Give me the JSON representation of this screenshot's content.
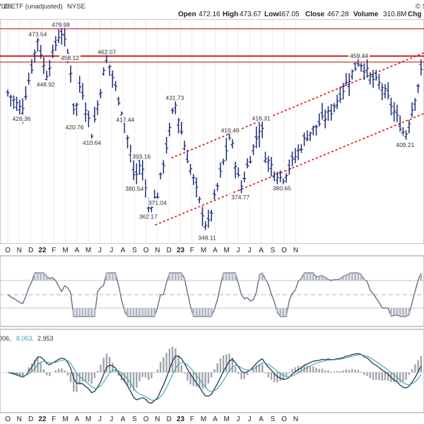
{
  "header": {
    "title_fragment": "00 ETF (unadjusted)",
    "exchange": "NYSE",
    "open_label": "Open",
    "open_value": "472.16",
    "high_label": "High",
    "high_value": "473.67",
    "low_label": "Low",
    "low_value": "467.05",
    "close_label": "Close",
    "close_value": "467.28",
    "volume_label": "Volume",
    "volume_value": "310.8M",
    "chg_label": "Chg",
    "top_left_fragment": "7.28",
    "top_right_fragment": "© S"
  },
  "macd_labels": {
    "first": "006,",
    "signal": "8.053,",
    "hist": "2.953"
  },
  "colors": {
    "bars": "#1b2a78",
    "resistance": "#cc0000",
    "channel": "#dd1111",
    "price_label_bg": "#ffffff",
    "osc_line": "#5a6680",
    "osc_fill": "#b4b9c5",
    "macd_line": "#2a3555",
    "signal_line": "#3aa6a6",
    "hist": "#a0a4ad",
    "grid": "#d4d4d4"
  },
  "chart_data": {
    "type": "ohlc",
    "ylim": [
      340,
      485
    ],
    "xaxis_labels": [
      "O",
      "N",
      "D",
      "22",
      "F",
      "M",
      "A",
      "M",
      "J",
      "J",
      "A",
      "S",
      "O",
      "N",
      "D",
      "23",
      "F",
      "M",
      "A",
      "M",
      "J",
      "J",
      "A",
      "S",
      "O",
      "N"
    ],
    "year_labels": [
      "22",
      "23"
    ],
    "price_keypoints": [
      {
        "t": 0.0,
        "close": 438
      },
      {
        "t": 1.2,
        "close": 426.36
      },
      {
        "t": 2.0,
        "close": 452
      },
      {
        "t": 2.6,
        "close": 473.54
      },
      {
        "t": 3.3,
        "close": 448.92
      },
      {
        "t": 4.6,
        "close": 479.98
      },
      {
        "t": 5.4,
        "close": 458.12
      },
      {
        "t": 5.8,
        "close": 420.76
      },
      {
        "t": 6.3,
        "close": 445
      },
      {
        "t": 7.3,
        "close": 410.64
      },
      {
        "t": 8.6,
        "close": 462.07
      },
      {
        "t": 10.2,
        "close": 417.44
      },
      {
        "t": 11.0,
        "close": 380.54
      },
      {
        "t": 11.6,
        "close": 393.16
      },
      {
        "t": 12.2,
        "close": 362.17
      },
      {
        "t": 13.0,
        "close": 371.04
      },
      {
        "t": 14.5,
        "close": 431.73
      },
      {
        "t": 15.6,
        "close": 395.0
      },
      {
        "t": 17.3,
        "close": 348.11
      },
      {
        "t": 19.3,
        "close": 410.49
      },
      {
        "t": 20.2,
        "close": 374.77
      },
      {
        "t": 22.0,
        "close": 418.31
      },
      {
        "t": 22.4,
        "close": 395.0
      },
      {
        "t": 23.8,
        "close": 380.65
      },
      {
        "t": 26.0,
        "close": 410.0
      },
      {
        "t": 28.0,
        "close": 425.0
      },
      {
        "t": 30.5,
        "close": 459.44
      },
      {
        "t": 31.5,
        "close": 448.0
      },
      {
        "t": 32.5,
        "close": 442.0
      },
      {
        "t": 33.4,
        "close": 428.0
      },
      {
        "t": 34.5,
        "close": 409.21
      },
      {
        "t": 36.0,
        "close": 455.0
      }
    ],
    "price_labels": [
      {
        "text": "473.54",
        "t": 2.6,
        "price": 473.54,
        "pos": "above"
      },
      {
        "text": "479.98",
        "t": 4.6,
        "price": 479.98,
        "pos": "above"
      },
      {
        "text": "458.12",
        "t": 5.4,
        "price": 458.12,
        "pos": "above"
      },
      {
        "text": "462.07",
        "t": 8.6,
        "price": 462.07,
        "pos": "above"
      },
      {
        "text": "431.73",
        "t": 14.5,
        "price": 431.73,
        "pos": "above"
      },
      {
        "text": "418.31",
        "t": 22.0,
        "price": 418.31,
        "pos": "above"
      },
      {
        "text": "410.49",
        "t": 19.3,
        "price": 410.49,
        "pos": "above"
      },
      {
        "text": "417.44",
        "t": 10.2,
        "price": 417.44,
        "pos": "above"
      },
      {
        "text": "459.44",
        "t": 30.5,
        "price": 459.44,
        "pos": "above"
      },
      {
        "text": "426.36",
        "t": 1.2,
        "price": 426.36,
        "pos": "below"
      },
      {
        "text": "448.92",
        "t": 3.3,
        "price": 448.92,
        "pos": "below"
      },
      {
        "text": "420.76",
        "t": 5.8,
        "price": 420.76,
        "pos": "below"
      },
      {
        "text": "410.64",
        "t": 7.3,
        "price": 410.64,
        "pos": "below"
      },
      {
        "text": "380.54",
        "t": 11.0,
        "price": 380.54,
        "pos": "below"
      },
      {
        "text": "393.16",
        "t": 11.6,
        "price": 393.16,
        "pos": "above"
      },
      {
        "text": "362.17",
        "t": 12.2,
        "price": 362.17,
        "pos": "below"
      },
      {
        "text": "371.04",
        "t": 13.0,
        "price": 371.04,
        "pos": "below"
      },
      {
        "text": "348.11",
        "t": 17.3,
        "price": 348.11,
        "pos": "below"
      },
      {
        "text": "374.77",
        "t": 20.2,
        "price": 374.77,
        "pos": "below"
      },
      {
        "text": "380.65",
        "t": 23.8,
        "price": 380.65,
        "pos": "below"
      },
      {
        "text": "409.21",
        "t": 34.5,
        "price": 409.21,
        "pos": "below"
      }
    ],
    "resistance_levels": [
      479.98,
      462.07,
      458.12
    ],
    "channel_lines": [
      {
        "from": {
          "t": 14.2,
          "price": 395
        },
        "to": {
          "t": 37.0,
          "price": 467
        }
      },
      {
        "from": {
          "t": 12.8,
          "price": 351
        },
        "to": {
          "t": 37.0,
          "price": 427
        }
      }
    ]
  }
}
